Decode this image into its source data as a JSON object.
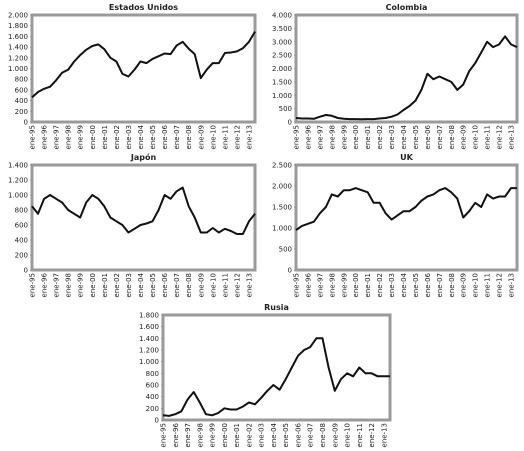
{
  "chart_data": [
    {
      "type": "line",
      "title": "Estados Unidos",
      "categories": [
        "ene-95",
        null,
        "ene-96",
        null,
        "ene-97",
        null,
        "ene-98",
        null,
        "ene-99",
        null,
        "ene-00",
        null,
        "ene-01",
        null,
        "ene-02",
        null,
        "ene-03",
        null,
        "ene-04",
        null,
        "ene-05",
        null,
        "ene-06",
        null,
        "ene-07",
        null,
        "ene-08",
        null,
        "ene-09",
        null,
        "ene-10",
        null,
        "ene-11",
        null,
        "ene-12",
        null,
        "ene-13",
        null
      ],
      "series": [
        {
          "color": "#111111",
          "values": [
            460,
            560,
            620,
            660,
            780,
            920,
            980,
            1130,
            1250,
            1350,
            1420,
            1450,
            1360,
            1200,
            1130,
            900,
            850,
            980,
            1130,
            1100,
            1180,
            1230,
            1280,
            1270,
            1430,
            1500,
            1370,
            1270,
            820,
            980,
            1100,
            1100,
            1290,
            1300,
            1320,
            1380,
            1500,
            1690
          ]
        }
      ],
      "ylim": [
        0,
        2000
      ],
      "yticks": [
        0,
        200,
        400,
        600,
        800,
        {
          "value": 1000,
          "label": "1.000"
        },
        {
          "value": 1200,
          "label": "1.200"
        },
        {
          "value": 1400,
          "label": "1.400"
        },
        {
          "value": 1600,
          "label": "1.600"
        },
        {
          "value": 1800,
          "label": "1.800"
        },
        {
          "value": 2000,
          "label": "2.000"
        }
      ]
    },
    {
      "type": "line",
      "title": "Colombia",
      "categories": [
        "ene-95",
        null,
        "ene-96",
        null,
        "ene-97",
        null,
        "ene-98",
        null,
        "ene-99",
        null,
        "ene-00",
        null,
        "ene-01",
        null,
        "ene-02",
        null,
        "ene-03",
        null,
        "ene-04",
        null,
        "ene-05",
        null,
        "ene-06",
        null,
        "ene-07",
        null,
        "ene-08",
        null,
        "ene-09",
        null,
        "ene-10",
        null,
        "ene-11",
        null,
        "ene-12",
        null,
        "ene-13",
        null
      ],
      "series": [
        {
          "color": "#111111",
          "values": [
            150,
            130,
            130,
            120,
            200,
            260,
            230,
            150,
            120,
            110,
            110,
            100,
            110,
            110,
            130,
            150,
            200,
            280,
            450,
            600,
            800,
            1200,
            1800,
            1600,
            1700,
            1600,
            1500,
            1200,
            1400,
            1900,
            2200,
            2600,
            3000,
            2800,
            2900,
            3200,
            2900,
            2800
          ]
        }
      ],
      "ylim": [
        0,
        4000
      ],
      "yticks": [
        0,
        500,
        {
          "value": 1000,
          "label": "1.000"
        },
        {
          "value": 1500,
          "label": "1.500"
        },
        {
          "value": 2000,
          "label": "2.000"
        },
        {
          "value": 2500,
          "label": "2.500"
        },
        {
          "value": 3000,
          "label": "3.000"
        },
        {
          "value": 3500,
          "label": "3.500"
        },
        {
          "value": 4000,
          "label": "4.000"
        }
      ]
    },
    {
      "type": "line",
      "title": "Japón",
      "categories": [
        "ene-95",
        null,
        "ene-96",
        null,
        "ene-97",
        null,
        "ene-98",
        null,
        "ene-99",
        null,
        "ene-00",
        null,
        "ene-01",
        null,
        "ene-02",
        null,
        "ene-03",
        null,
        "ene-04",
        null,
        "ene-05",
        null,
        "ene-06",
        null,
        "ene-07",
        null,
        "ene-08",
        null,
        "ene-09",
        null,
        "ene-10",
        null,
        "ene-11",
        null,
        "ene-12",
        null,
        "ene-13",
        null
      ],
      "series": [
        {
          "color": "#111111",
          "values": [
            850,
            750,
            950,
            1000,
            950,
            900,
            800,
            750,
            700,
            900,
            1000,
            950,
            850,
            700,
            650,
            600,
            500,
            550,
            600,
            620,
            650,
            800,
            1000,
            950,
            1050,
            1100,
            850,
            700,
            500,
            500,
            560,
            500,
            550,
            520,
            480,
            480,
            650,
            750
          ]
        }
      ],
      "ylim": [
        0,
        1400
      ],
      "yticks": [
        0,
        200,
        400,
        600,
        800,
        {
          "value": 1000,
          "label": "1.000"
        },
        {
          "value": 1200,
          "label": "1.200"
        },
        {
          "value": 1400,
          "label": "1.400"
        }
      ]
    },
    {
      "type": "line",
      "title": "UK",
      "categories": [
        "ene-95",
        null,
        "ene-96",
        null,
        "ene-97",
        null,
        "ene-98",
        null,
        "ene-99",
        null,
        "ene-00",
        null,
        "ene-01",
        null,
        "ene-02",
        null,
        "ene-03",
        null,
        "ene-04",
        null,
        "ene-05",
        null,
        "ene-06",
        null,
        "ene-07",
        null,
        "ene-08",
        null,
        "ene-09",
        null,
        "ene-10",
        null,
        "ene-11",
        null,
        "ene-12",
        null,
        "ene-13",
        null
      ],
      "series": [
        {
          "color": "#111111",
          "values": [
            950,
            1050,
            1100,
            1150,
            1350,
            1500,
            1800,
            1750,
            1900,
            1900,
            1950,
            1900,
            1850,
            1600,
            1600,
            1350,
            1200,
            1300,
            1400,
            1400,
            1500,
            1650,
            1750,
            1800,
            1900,
            1950,
            1850,
            1700,
            1250,
            1400,
            1600,
            1500,
            1800,
            1700,
            1750,
            1750,
            1950,
            1950
          ]
        }
      ],
      "ylim": [
        0,
        2500
      ],
      "yticks": [
        0,
        500,
        {
          "value": 1000,
          "label": "1.000"
        },
        {
          "value": 1500,
          "label": "1.500"
        },
        {
          "value": 2000,
          "label": "2.000"
        },
        {
          "value": 2500,
          "label": "2.500"
        }
      ]
    },
    {
      "type": "line",
      "title": "Rusia",
      "categories": [
        "ene-95",
        null,
        "ene-96",
        null,
        "ene-97",
        null,
        "ene-98",
        null,
        "ene-99",
        null,
        "ene-00",
        null,
        "ene-01",
        null,
        "ene-02",
        null,
        "ene-03",
        null,
        "ene-04",
        null,
        "ene-05",
        null,
        "ene-06",
        null,
        "ene-07",
        null,
        "ene-08",
        null,
        "ene-09",
        null,
        "ene-10",
        null,
        "ene-11",
        null,
        "ene-12",
        null,
        "ene-13",
        null
      ],
      "series": [
        {
          "color": "#111111",
          "values": [
            80,
            70,
            100,
            150,
            350,
            480,
            300,
            100,
            80,
            120,
            200,
            180,
            180,
            230,
            300,
            270,
            380,
            500,
            600,
            520,
            700,
            900,
            1100,
            1200,
            1250,
            1400,
            1400,
            900,
            500,
            700,
            800,
            750,
            900,
            800,
            800,
            750,
            750,
            750
          ]
        }
      ],
      "ylim": [
        0,
        1800
      ],
      "yticks": [
        0,
        200,
        400,
        600,
        800,
        {
          "value": 1000,
          "label": "1.000"
        },
        {
          "value": 1200,
          "label": "1.200"
        },
        {
          "value": 1400,
          "label": "1.400"
        },
        {
          "value": 1600,
          "label": "1.600"
        },
        {
          "value": 1800,
          "label": "1.800"
        }
      ]
    }
  ]
}
